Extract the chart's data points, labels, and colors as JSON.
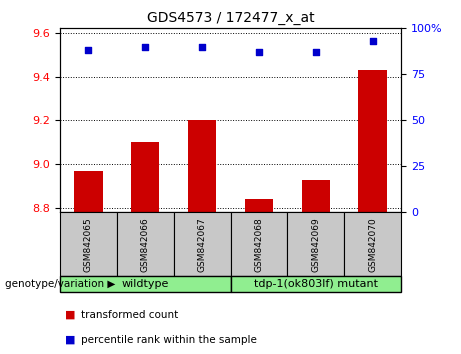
{
  "title": "GDS4573 / 172477_x_at",
  "samples": [
    "GSM842065",
    "GSM842066",
    "GSM842067",
    "GSM842068",
    "GSM842069",
    "GSM842070"
  ],
  "transformed_count": [
    8.97,
    9.1,
    9.2,
    8.84,
    8.93,
    9.43
  ],
  "percentile_rank": [
    88,
    90,
    90,
    87,
    87,
    93
  ],
  "ylim_left": [
    8.78,
    9.62
  ],
  "ylim_right": [
    0,
    100
  ],
  "yticks_left": [
    8.8,
    9.0,
    9.2,
    9.4,
    9.6
  ],
  "yticks_right": [
    0,
    25,
    50,
    75,
    100
  ],
  "ytick_right_labels": [
    "0",
    "25",
    "50",
    "75",
    "100%"
  ],
  "bar_color": "#CC0000",
  "dot_color": "#0000CC",
  "bar_bottom": 8.78,
  "sample_box_color": "#C8C8C8",
  "group_box_color": "#90EE90",
  "legend_items": [
    "transformed count",
    "percentile rank within the sample"
  ],
  "wildtype_label": "wildtype",
  "mutant_label": "tdp-1(ok803lf) mutant",
  "genotype_label": "genotype/variation",
  "wildtype_indices": [
    0,
    1,
    2
  ],
  "mutant_indices": [
    3,
    4,
    5
  ]
}
